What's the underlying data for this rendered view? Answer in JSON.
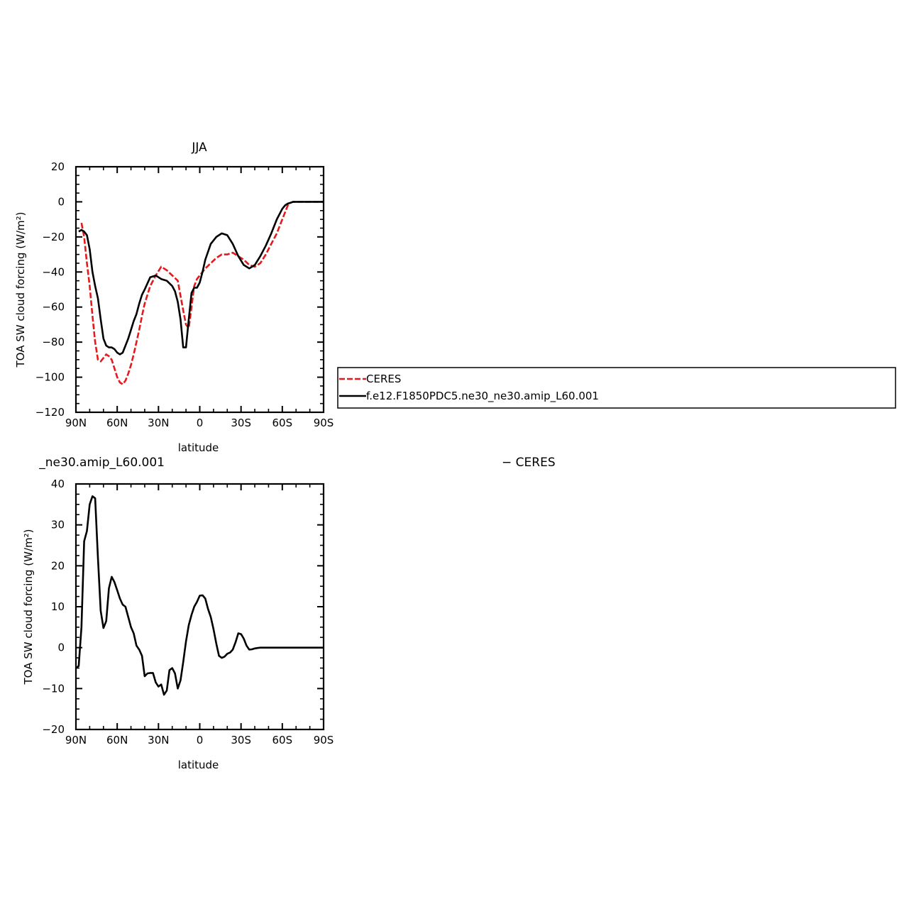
{
  "chart_data": [
    {
      "type": "line",
      "title": "JJA",
      "xlabel": "latitude",
      "ylabel": "TOA SW cloud forcing (W/m²)",
      "xlim": [
        90,
        -90
      ],
      "ylim": [
        -120,
        20
      ],
      "xticks": [
        90,
        60,
        30,
        0,
        -30,
        -60,
        -90
      ],
      "xtick_labels": [
        "90N",
        "60N",
        "30N",
        "0",
        "30S",
        "60S",
        "90S"
      ],
      "yticks": [
        -120,
        -100,
        -80,
        -60,
        -40,
        -20,
        0,
        20
      ],
      "ytick_labels": [
        "−120",
        "−100",
        "−80",
        "−60",
        "−40",
        "−20",
        "0",
        "20"
      ],
      "grid": false,
      "legend_position": "right",
      "series": [
        {
          "name": "CERES",
          "color": "#e41a1c",
          "style": "dashed",
          "x": [
            86,
            84,
            82,
            80,
            78,
            76,
            74,
            72,
            70,
            68,
            66,
            64,
            62,
            60,
            58,
            56,
            54,
            52,
            50,
            48,
            46,
            44,
            42,
            40,
            36,
            32,
            28,
            24,
            20,
            16,
            12,
            10,
            8,
            6,
            4,
            2,
            0,
            -4,
            -8,
            -12,
            -16,
            -20,
            -24,
            -28,
            -32,
            -36,
            -40,
            -44,
            -48,
            -52,
            -56,
            -60,
            -62,
            -64,
            -66,
            -68,
            -70,
            -74,
            -80,
            -90
          ],
          "y": [
            -12,
            -20,
            -35,
            -48,
            -65,
            -80,
            -90,
            -91,
            -89,
            -87,
            -88,
            -90,
            -95,
            -100,
            -103,
            -104,
            -102,
            -98,
            -93,
            -87,
            -80,
            -73,
            -65,
            -58,
            -48,
            -42,
            -37,
            -39,
            -42,
            -45,
            -62,
            -70,
            -72,
            -60,
            -48,
            -44,
            -42,
            -38,
            -35,
            -32,
            -30,
            -30,
            -29,
            -31,
            -33,
            -36,
            -37,
            -35,
            -30,
            -24,
            -18,
            -10,
            -6,
            -2,
            -0.5,
            0,
            0,
            0,
            0,
            0
          ]
        },
        {
          "name": "f.e12.F1850PDC5.ne30_ne30.amip_L60.001",
          "color": "#000000",
          "style": "solid",
          "x": [
            88,
            86,
            84,
            82,
            80,
            78,
            76,
            74,
            72,
            70,
            68,
            66,
            64,
            62,
            60,
            58,
            56,
            54,
            52,
            50,
            48,
            46,
            44,
            42,
            40,
            36,
            32,
            28,
            24,
            20,
            18,
            16,
            14,
            12,
            10,
            8,
            6,
            4,
            2,
            0,
            -2,
            -4,
            -8,
            -12,
            -16,
            -20,
            -24,
            -28,
            -32,
            -36,
            -40,
            -44,
            -48,
            -52,
            -56,
            -60,
            -62,
            -64,
            -66,
            -68,
            -70,
            -74,
            -80,
            -90
          ],
          "y": [
            -17,
            -16,
            -17,
            -19,
            -27,
            -40,
            -48,
            -55,
            -67,
            -78,
            -82,
            -83,
            -83,
            -84,
            -86,
            -87,
            -86,
            -82,
            -78,
            -73,
            -68,
            -64,
            -58,
            -53,
            -50,
            -43,
            -42,
            -44,
            -45,
            -48,
            -51,
            -57,
            -67,
            -83,
            -83,
            -67,
            -52,
            -49,
            -49,
            -46,
            -40,
            -33,
            -24,
            -20,
            -18,
            -19,
            -24,
            -31,
            -36,
            -38,
            -36,
            -31,
            -25,
            -18,
            -10,
            -4,
            -2,
            -1,
            -0.5,
            0,
            0,
            0,
            0,
            0
          ]
        }
      ]
    },
    {
      "type": "line",
      "title": "_ne30.amip_L60.001",
      "xlabel": "latitude",
      "ylabel": "TOA SW cloud forcing (W/m²)",
      "xlim": [
        90,
        -90
      ],
      "ylim": [
        -20,
        40
      ],
      "xticks": [
        90,
        60,
        30,
        0,
        -30,
        -60,
        -90
      ],
      "xtick_labels": [
        "90N",
        "60N",
        "30N",
        "0",
        "30S",
        "60S",
        "90S"
      ],
      "yticks": [
        -20,
        -10,
        0,
        10,
        20,
        30,
        40
      ],
      "ytick_labels": [
        "−20",
        "−10",
        "0",
        "10",
        "20",
        "30",
        "40"
      ],
      "grid": false,
      "series": [
        {
          "name": "",
          "color": "#000000",
          "style": "solid",
          "x": [
            90,
            88,
            86,
            84,
            82,
            80,
            78,
            76,
            74,
            72,
            70,
            68,
            66,
            64,
            62,
            60,
            58,
            56,
            54,
            52,
            50,
            48,
            46,
            44,
            42,
            40,
            38,
            36,
            34,
            32,
            30,
            28,
            26,
            24,
            22,
            20,
            18,
            16,
            14,
            12,
            10,
            8,
            6,
            4,
            2,
            0,
            -2,
            -4,
            -6,
            -8,
            -10,
            -12,
            -14,
            -16,
            -18,
            -20,
            -22,
            -24,
            -26,
            -28,
            -30,
            -32,
            -34,
            -36,
            -38,
            -40,
            -42,
            -44,
            -46,
            -48,
            -50,
            -52,
            -54,
            -56,
            -58,
            -60,
            -62,
            -64,
            -66,
            -68,
            -70,
            -72,
            -74,
            -76,
            -80,
            -85,
            -90
          ],
          "y": [
            -5,
            -4.5,
            5,
            26,
            28.5,
            35,
            37,
            36.5,
            22,
            9,
            4.8,
            6.5,
            14.5,
            17.3,
            16,
            14,
            12,
            10.5,
            10,
            7.5,
            5,
            3.5,
            0.5,
            -0.5,
            -2,
            -7,
            -6.3,
            -6.2,
            -6.2,
            -8.5,
            -9.5,
            -9,
            -11.5,
            -10.5,
            -5.5,
            -5,
            -6.3,
            -10,
            -8,
            -3.5,
            1.5,
            5.5,
            8,
            10,
            11.2,
            12.7,
            12.8,
            12,
            9.5,
            7.5,
            4.5,
            1,
            -2,
            -2.5,
            -2.2,
            -1.5,
            -1.2,
            -0.5,
            1.3,
            3.5,
            3.3,
            2.2,
            0.5,
            -0.5,
            -0.4,
            -0.2,
            -0.1,
            0,
            0,
            0,
            0,
            0,
            0,
            0,
            0,
            0,
            0,
            0,
            0,
            0,
            0,
            0,
            0,
            0,
            0,
            0,
            0
          ]
        }
      ]
    }
  ],
  "legend_fragment": "− CERES"
}
